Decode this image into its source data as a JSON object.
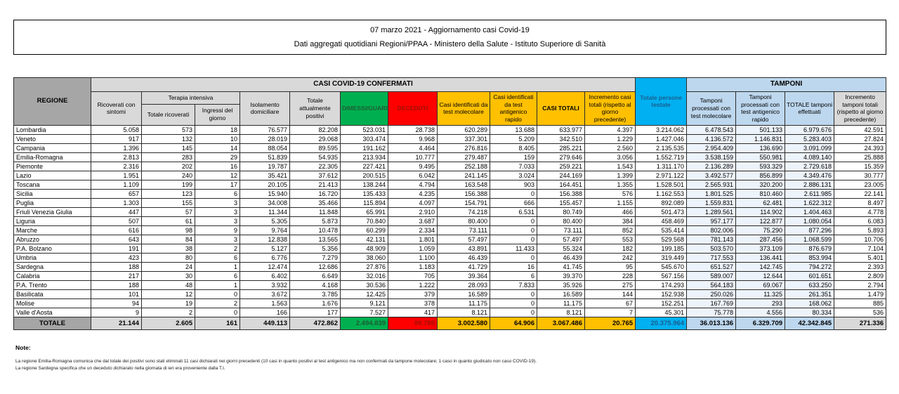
{
  "title": {
    "line1": "07 marzo 2021 - Aggiornamento casi Covid-19",
    "line2": "Dati aggregati quotidiani Regioni/PPAA - Ministero della Salute - Istituto Superiore di Sanità"
  },
  "colors": {
    "green": "#00B050",
    "red": "#FF0000",
    "yellow": "#FFC000",
    "bright_blue": "#00B0F0",
    "light_blue": "#BDD7EE",
    "header_gray": "#D9D9D9",
    "dark_gray": "#A6A6A6"
  },
  "table": {
    "headers": {
      "regione": "REGIONE",
      "casi_group": "CASI COVID-19 CONFERMATI",
      "tamponi_group": "TAMPONI",
      "terapia_group": "Terapia intensiva",
      "ricoverati": "Ricoverati con sintomi",
      "terapia_totale": "Totale ricoverati",
      "terapia_ingressi": "Ingressi del giorno",
      "isolamento": "Isolamento domiciliare",
      "attualmente_positivi": "Totale attualmente positivi",
      "dimessi": "DIMESSI/GUARITI",
      "deceduti": "DECEDUTI",
      "casi_molecolare": "Casi identificati da test molecolare",
      "casi_antigenico": "Casi identificati da test antigenico rapido",
      "casi_totali": "CASI TOTALI",
      "incremento_casi": "Incremento casi totali (rispetto al giorno precedente)",
      "persone_testate": "Totale persone testate",
      "tamponi_molecolare": "Tamponi processati con test molecolare",
      "tamponi_antigenico": "Tamponi processati con test antigenico rapido",
      "tamponi_totale": "TOTALE tamponi effettuati",
      "incremento_tamponi": "Incremento tamponi totali (rispetto al giorno precedente)"
    },
    "column_keys": [
      "ricoverati_con_sintomi",
      "terapia_totale_ricoverati",
      "terapia_ingressi_del_giorno",
      "isolamento_domiciliare",
      "totale_attualmente_positivi",
      "dimessi_guariti",
      "deceduti",
      "casi_test_molecolare",
      "casi_test_antigenico",
      "casi_totali",
      "incremento_casi_totali",
      "totale_persone_testate",
      "tamponi_test_molecolare",
      "tamponi_test_antigenico",
      "totale_tamponi",
      "incremento_tamponi"
    ],
    "rows": [
      {
        "region": "Lombardia",
        "values": [
          "5.058",
          "573",
          "18",
          "76.577",
          "82.208",
          "523.031",
          "28.738",
          "620.289",
          "13.688",
          "633.977",
          "4.397",
          "3.214.062",
          "6.478.543",
          "501.133",
          "6.979.676",
          "42.591"
        ]
      },
      {
        "region": "Veneto",
        "values": [
          "917",
          "132",
          "10",
          "28.019",
          "29.068",
          "303.474",
          "9.968",
          "337.301",
          "5.209",
          "342.510",
          "1.229",
          "1.427.046",
          "4.136.572",
          "1.146.831",
          "5.283.403",
          "27.824"
        ]
      },
      {
        "region": "Campania",
        "values": [
          "1.396",
          "145",
          "14",
          "88.054",
          "89.595",
          "191.162",
          "4.464",
          "276.816",
          "8.405",
          "285.221",
          "2.560",
          "2.135.535",
          "2.954.409",
          "136.690",
          "3.091.099",
          "24.393"
        ]
      },
      {
        "region": "Emilia-Romagna",
        "values": [
          "2.813",
          "283",
          "29",
          "51.839",
          "54.935",
          "213.934",
          "10.777",
          "279.487",
          "159",
          "279.646",
          "3.056",
          "1.552.719",
          "3.538.159",
          "550.981",
          "4.089.140",
          "25.888"
        ]
      },
      {
        "region": "Piemonte",
        "values": [
          "2.316",
          "202",
          "16",
          "19.787",
          "22.305",
          "227.421",
          "9.495",
          "252.188",
          "7.033",
          "259.221",
          "1.543",
          "1.311.170",
          "2.136.289",
          "593.329",
          "2.729.618",
          "15.359"
        ]
      },
      {
        "region": "Lazio",
        "values": [
          "1.951",
          "240",
          "12",
          "35.421",
          "37.612",
          "200.515",
          "6.042",
          "241.145",
          "3.024",
          "244.169",
          "1.399",
          "2.971.122",
          "3.492.577",
          "856.899",
          "4.349.476",
          "30.777"
        ]
      },
      {
        "region": "Toscana",
        "values": [
          "1.109",
          "199",
          "17",
          "20.105",
          "21.413",
          "138.244",
          "4.794",
          "163.548",
          "903",
          "164.451",
          "1.355",
          "1.528.501",
          "2.565.931",
          "320.200",
          "2.886.131",
          "23.005"
        ]
      },
      {
        "region": "Sicilia",
        "values": [
          "657",
          "123",
          "6",
          "15.940",
          "16.720",
          "135.433",
          "4.235",
          "156.388",
          "0",
          "156.388",
          "576",
          "1.162.553",
          "1.801.525",
          "810.460",
          "2.611.985",
          "22.141"
        ]
      },
      {
        "region": "Puglia",
        "values": [
          "1.303",
          "155",
          "3",
          "34.008",
          "35.466",
          "115.894",
          "4.097",
          "154.791",
          "666",
          "155.457",
          "1.155",
          "892.089",
          "1.559.831",
          "62.481",
          "1.622.312",
          "8.497"
        ]
      },
      {
        "region": "Friuli Venezia Giulia",
        "values": [
          "447",
          "57",
          "3",
          "11.344",
          "11.848",
          "65.991",
          "2.910",
          "74.218",
          "6.531",
          "80.749",
          "466",
          "501.473",
          "1.289.561",
          "114.902",
          "1.404.463",
          "4.778"
        ]
      },
      {
        "region": "Liguria",
        "values": [
          "507",
          "61",
          "3",
          "5.305",
          "5.873",
          "70.840",
          "3.687",
          "80.400",
          "0",
          "80.400",
          "384",
          "458.469",
          "957.177",
          "122.877",
          "1.080.054",
          "6.083"
        ]
      },
      {
        "region": "Marche",
        "values": [
          "616",
          "98",
          "9",
          "9.764",
          "10.478",
          "60.299",
          "2.334",
          "73.111",
          "0",
          "73.111",
          "852",
          "535.414",
          "802.006",
          "75.290",
          "877.296",
          "5.893"
        ]
      },
      {
        "region": "Abruzzo",
        "values": [
          "643",
          "84",
          "3",
          "12.838",
          "13.565",
          "42.131",
          "1.801",
          "57.497",
          "0",
          "57.497",
          "553",
          "529.568",
          "781.143",
          "287.456",
          "1.068.599",
          "10.706"
        ]
      },
      {
        "region": "P.A. Bolzano",
        "values": [
          "191",
          "38",
          "2",
          "5.127",
          "5.356",
          "48.909",
          "1.059",
          "43.891",
          "11.433",
          "55.324",
          "182",
          "199.185",
          "503.570",
          "373.109",
          "876.679",
          "7.104"
        ]
      },
      {
        "region": "Umbria",
        "values": [
          "423",
          "80",
          "6",
          "6.776",
          "7.279",
          "38.060",
          "1.100",
          "46.439",
          "0",
          "46.439",
          "242",
          "319.449",
          "717.553",
          "136.441",
          "853.994",
          "5.401"
        ]
      },
      {
        "region": "Sardegna",
        "values": [
          "188",
          "24",
          "1",
          "12.474",
          "12.686",
          "27.876",
          "1.183",
          "41.729",
          "16",
          "41.745",
          "95",
          "545.670",
          "651.527",
          "142.745",
          "794.272",
          "2.393"
        ]
      },
      {
        "region": "Calabria",
        "values": [
          "217",
          "30",
          "6",
          "6.402",
          "6.649",
          "32.016",
          "705",
          "39.364",
          "6",
          "39.370",
          "228",
          "567.156",
          "589.007",
          "12.644",
          "601.651",
          "2.809"
        ]
      },
      {
        "region": "P.A. Trento",
        "values": [
          "188",
          "48",
          "1",
          "3.932",
          "4.168",
          "30.536",
          "1.222",
          "28.093",
          "7.833",
          "35.926",
          "275",
          "174.293",
          "564.183",
          "69.067",
          "633.250",
          "2.794"
        ]
      },
      {
        "region": "Basilicata",
        "values": [
          "101",
          "12",
          "0",
          "3.672",
          "3.785",
          "12.425",
          "379",
          "16.589",
          "0",
          "16.589",
          "144",
          "152.938",
          "250.026",
          "11.325",
          "261.351",
          "1.479"
        ]
      },
      {
        "region": "Molise",
        "values": [
          "94",
          "19",
          "2",
          "1.563",
          "1.676",
          "9.121",
          "378",
          "11.175",
          "0",
          "11.175",
          "67",
          "152.251",
          "167.769",
          "293",
          "168.062",
          "885"
        ]
      },
      {
        "region": "Valle d'Aosta",
        "values": [
          "9",
          "2",
          "0",
          "166",
          "177",
          "7.527",
          "417",
          "8.121",
          "0",
          "8.121",
          "7",
          "45.301",
          "75.778",
          "4.556",
          "80.334",
          "536"
        ]
      }
    ],
    "total_row": {
      "region": "TOTALE",
      "values": [
        "21.144",
        "2.605",
        "161",
        "449.113",
        "472.862",
        "2.494.839",
        "99.785",
        "3.002.580",
        "64.906",
        "3.067.486",
        "20.765",
        "20.375.964",
        "36.013.136",
        "6.329.709",
        "42.342.845",
        "271.336"
      ]
    }
  },
  "notes": {
    "label": "Note:",
    "line1": "La regione Emilia-Romagna comunica che dal totale dei positivi sono stati eliminati 11 casi dichiarati nei giorni precedenti (10 casi in quanto positivi al test antigenico ma non confermati da tampone molecolare; 1 caso in quanto giudicato non caso COVID-19).",
    "line2": "La regione Sardegna specifica che un deceduto dichiarato nella giornata di ieri era proveniente dalla T.I."
  }
}
